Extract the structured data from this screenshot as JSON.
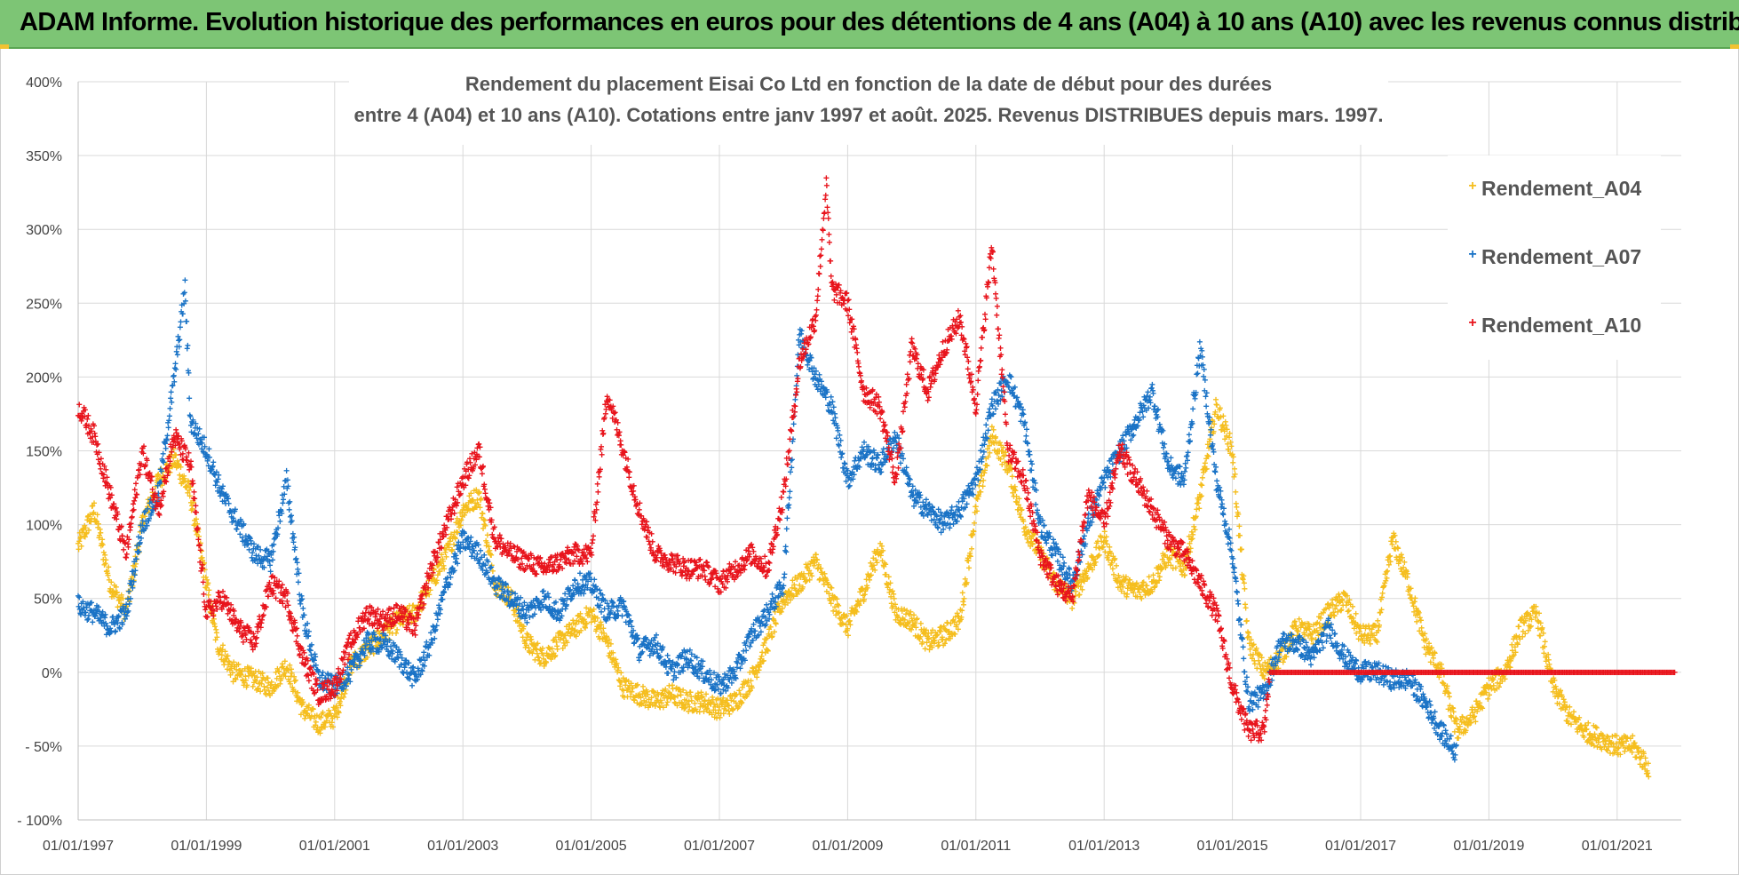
{
  "banner": {
    "title": "ADAM Informe. Evolution historique des performances en euros pour des détentions de 4 ans (A04) à 10 ans (A10) avec les revenus connus distribués"
  },
  "colors": {
    "banner_bg": "#7dc575",
    "a04": "#f5be1e",
    "a07": "#1a73c6",
    "a10": "#e8141c",
    "grid": "#d9d9d9"
  },
  "chart_data": {
    "type": "scatter",
    "title_line1": "Rendement du placement Eisai Co Ltd en fonction de la date de début pour des durées",
    "title_line2": "entre 4 (A04) et 10 ans (A10). Cotations entre janv 1997 et août. 2025. Revenus DISTRIBUES depuis mars. 1997.",
    "x_range": [
      "1997-01-01",
      "2021-12-31"
    ],
    "y_range": [
      -100,
      400
    ],
    "y_ticks": [
      400,
      350,
      300,
      250,
      200,
      150,
      100,
      50,
      0,
      -50,
      -100
    ],
    "y_tick_labels": [
      "400%",
      "350%",
      "300%",
      "250%",
      "200%",
      "150%",
      "100%",
      "50%",
      "0%",
      "- 50%",
      "- 100%"
    ],
    "x_tick_labels": [
      "01/01/1997",
      "01/01/1999",
      "01/01/2001",
      "01/01/2003",
      "01/01/2005",
      "01/01/2007",
      "01/01/2009",
      "01/01/2011",
      "01/01/2013",
      "01/01/2015",
      "01/01/2017",
      "01/01/2019",
      "01/01/2021"
    ],
    "legend_position": "top-right",
    "grid": true,
    "series": [
      {
        "name": "Rendement_A04",
        "color": "#f5be1e",
        "points": [
          [
            "1997-01",
            85
          ],
          [
            "1997-04",
            110
          ],
          [
            "1997-07",
            60
          ],
          [
            "1997-10",
            40
          ],
          [
            "1998-01",
            100
          ],
          [
            "1998-04",
            130
          ],
          [
            "1998-07",
            145
          ],
          [
            "1998-10",
            120
          ],
          [
            "1999-01",
            60
          ],
          [
            "1999-03",
            20
          ],
          [
            "1999-06",
            0
          ],
          [
            "1999-10",
            -5
          ],
          [
            "2000-01",
            -10
          ],
          [
            "2000-04",
            5
          ],
          [
            "2000-07",
            -25
          ],
          [
            "2000-10",
            -35
          ],
          [
            "2001-01",
            -30
          ],
          [
            "2001-04",
            5
          ],
          [
            "2001-07",
            15
          ],
          [
            "2001-10",
            25
          ],
          [
            "2002-01",
            35
          ],
          [
            "2002-04",
            40
          ],
          [
            "2002-07",
            60
          ],
          [
            "2002-10",
            80
          ],
          [
            "2003-01",
            110
          ],
          [
            "2003-04",
            120
          ],
          [
            "2003-07",
            60
          ],
          [
            "2003-10",
            50
          ],
          [
            "2004-01",
            20
          ],
          [
            "2004-04",
            10
          ],
          [
            "2004-07",
            20
          ],
          [
            "2004-10",
            30
          ],
          [
            "2005-01",
            40
          ],
          [
            "2005-04",
            20
          ],
          [
            "2005-07",
            -10
          ],
          [
            "2005-10",
            -15
          ],
          [
            "2006-01",
            -20
          ],
          [
            "2006-04",
            -15
          ],
          [
            "2006-07",
            -20
          ],
          [
            "2006-10",
            -20
          ],
          [
            "2007-01",
            -25
          ],
          [
            "2007-04",
            -20
          ],
          [
            "2007-07",
            -5
          ],
          [
            "2007-10",
            20
          ],
          [
            "2008-01",
            50
          ],
          [
            "2008-04",
            60
          ],
          [
            "2008-07",
            75
          ],
          [
            "2008-10",
            50
          ],
          [
            "2009-01",
            30
          ],
          [
            "2009-04",
            55
          ],
          [
            "2009-07",
            85
          ],
          [
            "2009-10",
            40
          ],
          [
            "2010-01",
            35
          ],
          [
            "2010-04",
            20
          ],
          [
            "2010-07",
            25
          ],
          [
            "2010-10",
            35
          ],
          [
            "2011-01",
            110
          ],
          [
            "2011-04",
            160
          ],
          [
            "2011-07",
            140
          ],
          [
            "2011-10",
            100
          ],
          [
            "2012-01",
            80
          ],
          [
            "2012-04",
            60
          ],
          [
            "2012-07",
            50
          ],
          [
            "2012-10",
            70
          ],
          [
            "2013-01",
            90
          ],
          [
            "2013-04",
            60
          ],
          [
            "2013-07",
            55
          ],
          [
            "2013-10",
            60
          ],
          [
            "2014-01",
            80
          ],
          [
            "2014-04",
            70
          ],
          [
            "2014-07",
            120
          ],
          [
            "2014-10",
            180
          ],
          [
            "2015-01",
            150
          ],
          [
            "2015-04",
            20
          ],
          [
            "2015-07",
            0
          ],
          [
            "2015-10",
            10
          ],
          [
            "2016-01",
            30
          ],
          [
            "2016-04",
            25
          ],
          [
            "2016-07",
            40
          ],
          [
            "2016-10",
            50
          ],
          [
            "2017-01",
            25
          ],
          [
            "2017-04",
            25
          ],
          [
            "2017-07",
            90
          ],
          [
            "2017-10",
            60
          ],
          [
            "2018-01",
            20
          ],
          [
            "2018-04",
            0
          ],
          [
            "2018-07",
            -40
          ],
          [
            "2018-10",
            -30
          ],
          [
            "2019-01",
            -10
          ],
          [
            "2019-04",
            0
          ],
          [
            "2019-07",
            30
          ],
          [
            "2019-10",
            40
          ],
          [
            "2020-01",
            -10
          ],
          [
            "2020-04",
            -30
          ],
          [
            "2020-07",
            -40
          ],
          [
            "2020-10",
            -45
          ],
          [
            "2021-01",
            -50
          ],
          [
            "2021-04",
            -50
          ],
          [
            "2021-07",
            -65
          ]
        ]
      },
      {
        "name": "Rendement_A07",
        "color": "#1a73c6",
        "points": [
          [
            "1997-01",
            45
          ],
          [
            "1997-04",
            40
          ],
          [
            "1997-07",
            30
          ],
          [
            "1997-10",
            40
          ],
          [
            "1998-01",
            100
          ],
          [
            "1998-04",
            120
          ],
          [
            "1998-07",
            200
          ],
          [
            "1998-09",
            260
          ],
          [
            "1998-10",
            170
          ],
          [
            "1999-01",
            150
          ],
          [
            "1999-04",
            120
          ],
          [
            "1999-07",
            100
          ],
          [
            "1999-10",
            80
          ],
          [
            "2000-01",
            75
          ],
          [
            "2000-04",
            130
          ],
          [
            "2000-07",
            40
          ],
          [
            "2000-10",
            -5
          ],
          [
            "2001-01",
            -10
          ],
          [
            "2001-04",
            0
          ],
          [
            "2001-07",
            20
          ],
          [
            "2001-10",
            20
          ],
          [
            "2002-01",
            10
          ],
          [
            "2002-04",
            -5
          ],
          [
            "2002-07",
            20
          ],
          [
            "2002-10",
            60
          ],
          [
            "2003-01",
            90
          ],
          [
            "2003-04",
            80
          ],
          [
            "2003-07",
            60
          ],
          [
            "2003-10",
            50
          ],
          [
            "2004-01",
            40
          ],
          [
            "2004-04",
            50
          ],
          [
            "2004-07",
            40
          ],
          [
            "2004-10",
            60
          ],
          [
            "2005-01",
            60
          ],
          [
            "2005-04",
            40
          ],
          [
            "2005-07",
            45
          ],
          [
            "2005-10",
            15
          ],
          [
            "2006-01",
            20
          ],
          [
            "2006-04",
            0
          ],
          [
            "2006-07",
            10
          ],
          [
            "2006-10",
            0
          ],
          [
            "2007-01",
            -10
          ],
          [
            "2007-04",
            0
          ],
          [
            "2007-07",
            25
          ],
          [
            "2007-10",
            40
          ],
          [
            "2008-01",
            60
          ],
          [
            "2008-04",
            230
          ],
          [
            "2008-07",
            200
          ],
          [
            "2008-10",
            180
          ],
          [
            "2009-01",
            130
          ],
          [
            "2009-04",
            150
          ],
          [
            "2009-07",
            140
          ],
          [
            "2009-10",
            160
          ],
          [
            "2010-01",
            120
          ],
          [
            "2010-04",
            110
          ],
          [
            "2010-07",
            100
          ],
          [
            "2010-10",
            110
          ],
          [
            "2011-01",
            130
          ],
          [
            "2011-04",
            180
          ],
          [
            "2011-07",
            200
          ],
          [
            "2011-10",
            170
          ],
          [
            "2012-01",
            100
          ],
          [
            "2012-04",
            80
          ],
          [
            "2012-07",
            60
          ],
          [
            "2012-10",
            100
          ],
          [
            "2013-01",
            130
          ],
          [
            "2013-04",
            150
          ],
          [
            "2013-07",
            170
          ],
          [
            "2013-10",
            190
          ],
          [
            "2014-01",
            140
          ],
          [
            "2014-04",
            130
          ],
          [
            "2014-07",
            220
          ],
          [
            "2014-10",
            130
          ],
          [
            "2015-01",
            80
          ],
          [
            "2015-04",
            -20
          ],
          [
            "2015-07",
            -15
          ],
          [
            "2015-10",
            20
          ],
          [
            "2016-01",
            20
          ],
          [
            "2016-04",
            10
          ],
          [
            "2016-07",
            30
          ],
          [
            "2016-10",
            10
          ],
          [
            "2017-01",
            0
          ],
          [
            "2017-04",
            0
          ],
          [
            "2017-07",
            -5
          ],
          [
            "2017-10",
            -5
          ],
          [
            "2018-01",
            -20
          ],
          [
            "2018-04",
            -40
          ],
          [
            "2018-07",
            -55
          ]
        ]
      },
      {
        "name": "Rendement_A10",
        "color": "#e8141c",
        "points": [
          [
            "1997-01",
            180
          ],
          [
            "1997-04",
            160
          ],
          [
            "1997-07",
            120
          ],
          [
            "1997-10",
            80
          ],
          [
            "1998-01",
            150
          ],
          [
            "1998-04",
            110
          ],
          [
            "1998-07",
            160
          ],
          [
            "1998-10",
            140
          ],
          [
            "1999-01",
            40
          ],
          [
            "1999-04",
            50
          ],
          [
            "1999-07",
            30
          ],
          [
            "1999-10",
            20
          ],
          [
            "2000-01",
            60
          ],
          [
            "2000-04",
            50
          ],
          [
            "2000-07",
            10
          ],
          [
            "2000-10",
            -15
          ],
          [
            "2001-01",
            -10
          ],
          [
            "2001-04",
            20
          ],
          [
            "2001-07",
            40
          ],
          [
            "2001-10",
            35
          ],
          [
            "2002-01",
            40
          ],
          [
            "2002-04",
            30
          ],
          [
            "2002-07",
            70
          ],
          [
            "2002-10",
            100
          ],
          [
            "2003-01",
            130
          ],
          [
            "2003-04",
            150
          ],
          [
            "2003-07",
            90
          ],
          [
            "2003-10",
            80
          ],
          [
            "2004-01",
            75
          ],
          [
            "2004-04",
            70
          ],
          [
            "2004-07",
            75
          ],
          [
            "2004-10",
            80
          ],
          [
            "2005-01",
            80
          ],
          [
            "2005-04",
            190
          ],
          [
            "2005-07",
            150
          ],
          [
            "2005-10",
            110
          ],
          [
            "2006-01",
            80
          ],
          [
            "2006-04",
            75
          ],
          [
            "2006-07",
            70
          ],
          [
            "2006-10",
            70
          ],
          [
            "2007-01",
            60
          ],
          [
            "2007-04",
            70
          ],
          [
            "2007-07",
            80
          ],
          [
            "2007-10",
            70
          ],
          [
            "2008-01",
            120
          ],
          [
            "2008-04",
            210
          ],
          [
            "2008-07",
            240
          ],
          [
            "2008-09",
            330
          ],
          [
            "2008-10",
            260
          ],
          [
            "2009-01",
            250
          ],
          [
            "2009-04",
            190
          ],
          [
            "2009-07",
            180
          ],
          [
            "2009-10",
            130
          ],
          [
            "2010-01",
            220
          ],
          [
            "2010-04",
            190
          ],
          [
            "2010-07",
            220
          ],
          [
            "2010-10",
            240
          ],
          [
            "2011-01",
            180
          ],
          [
            "2011-04",
            290
          ],
          [
            "2011-07",
            150
          ],
          [
            "2011-10",
            130
          ],
          [
            "2012-01",
            80
          ],
          [
            "2012-04",
            60
          ],
          [
            "2012-07",
            50
          ],
          [
            "2012-10",
            120
          ],
          [
            "2013-01",
            100
          ],
          [
            "2013-04",
            150
          ],
          [
            "2013-07",
            130
          ],
          [
            "2013-10",
            110
          ],
          [
            "2014-01",
            90
          ],
          [
            "2014-04",
            80
          ],
          [
            "2014-07",
            60
          ],
          [
            "2014-10",
            40
          ],
          [
            "2015-01",
            -10
          ],
          [
            "2015-04",
            -40
          ],
          [
            "2015-07",
            -40
          ],
          [
            "2015-08",
            0
          ],
          [
            "2021-12",
            0
          ]
        ]
      }
    ]
  }
}
